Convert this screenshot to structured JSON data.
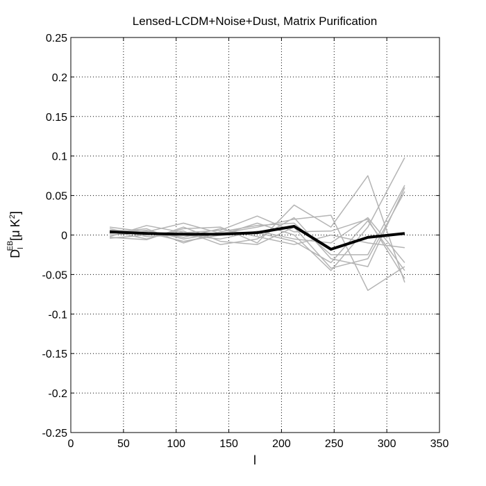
{
  "chart_data": {
    "type": "line",
    "title": "Lensed-LCDM+Noise+Dust, Matrix Purification",
    "xlabel": "l",
    "ylabel": {
      "main": "D",
      "sub": "l",
      "sup": "EB",
      "unit_open": "[",
      "unit_mu": "μ",
      "unit_K": "K",
      "unit_sup": "2",
      "unit_close": "]"
    },
    "xlim": [
      0,
      350
    ],
    "ylim": [
      -0.25,
      0.25
    ],
    "xticks": [
      0,
      50,
      100,
      150,
      200,
      250,
      300,
      350
    ],
    "yticks": [
      -0.25,
      -0.2,
      -0.15,
      -0.1,
      -0.05,
      0,
      0.05,
      0.1,
      0.15,
      0.2,
      0.25
    ],
    "grid": true,
    "x": [
      37,
      72,
      107,
      142,
      177,
      212,
      247,
      282,
      317
    ],
    "series": [
      {
        "role": "realization",
        "color": "#b4b4b4",
        "values": [
          0.01,
          0.004,
          0.015,
          0.002,
          0.01,
          0.02,
          0.025,
          -0.07,
          -0.04
        ]
      },
      {
        "role": "realization",
        "color": "#b4b4b4",
        "values": [
          -0.002,
          0.012,
          0.003,
          0.006,
          0.024,
          0.004,
          0.005,
          0.02,
          -0.055
        ]
      },
      {
        "role": "realization",
        "color": "#b4b4b4",
        "values": [
          0.005,
          -0.005,
          0.008,
          0.01,
          -0.01,
          0.038,
          0.01,
          0.075,
          -0.06
        ]
      },
      {
        "role": "realization",
        "color": "#b4b4b4",
        "values": [
          0.0,
          0.003,
          -0.008,
          0.0,
          0.015,
          0.0,
          -0.045,
          0.01,
          0.098
        ]
      },
      {
        "role": "realization",
        "color": "#b4b4b4",
        "values": [
          0.008,
          -0.002,
          0.0,
          -0.005,
          0.005,
          -0.005,
          -0.01,
          0.022,
          -0.035
        ]
      },
      {
        "role": "realization",
        "color": "#b4b4b4",
        "values": [
          0.003,
          0.008,
          -0.01,
          0.004,
          0.012,
          0.015,
          -0.025,
          -0.025,
          0.063
        ]
      },
      {
        "role": "realization",
        "color": "#b4b4b4",
        "values": [
          -0.004,
          0.0,
          0.005,
          -0.012,
          -0.005,
          0.022,
          -0.03,
          -0.04,
          0.06
        ]
      },
      {
        "role": "realization",
        "color": "#b4b4b4",
        "values": [
          0.006,
          0.005,
          -0.003,
          0.008,
          -0.002,
          -0.012,
          0.0,
          -0.01,
          -0.016
        ]
      },
      {
        "role": "realization",
        "color": "#b4b4b4",
        "values": [
          -0.003,
          -0.006,
          0.01,
          -0.008,
          -0.012,
          0.01,
          -0.042,
          -0.03,
          0.055
        ]
      },
      {
        "role": "realization",
        "color": "#b4b4b4",
        "values": [
          0.002,
          0.006,
          -0.005,
          0.003,
          0.003,
          -0.008,
          -0.035,
          0.018,
          -0.045
        ]
      },
      {
        "role": "mean",
        "color": "#000000",
        "values": [
          0.004,
          0.002,
          0.001,
          0.001,
          0.003,
          0.011,
          -0.018,
          -0.003,
          0.002
        ]
      }
    ]
  }
}
